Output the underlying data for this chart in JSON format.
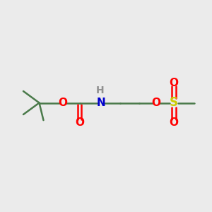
{
  "bg_color": "#EBEBEB",
  "bond_color": "#4a7a4a",
  "O_color": "#FF0000",
  "N_color": "#0000CC",
  "S_color": "#CCCC00",
  "H_color": "#909090",
  "line_width": 1.8,
  "font_size": 11,
  "fig_size": [
    3.0,
    3.0
  ],
  "dpi": 100,
  "xlim": [
    0,
    10
  ],
  "ylim": [
    0,
    10
  ]
}
